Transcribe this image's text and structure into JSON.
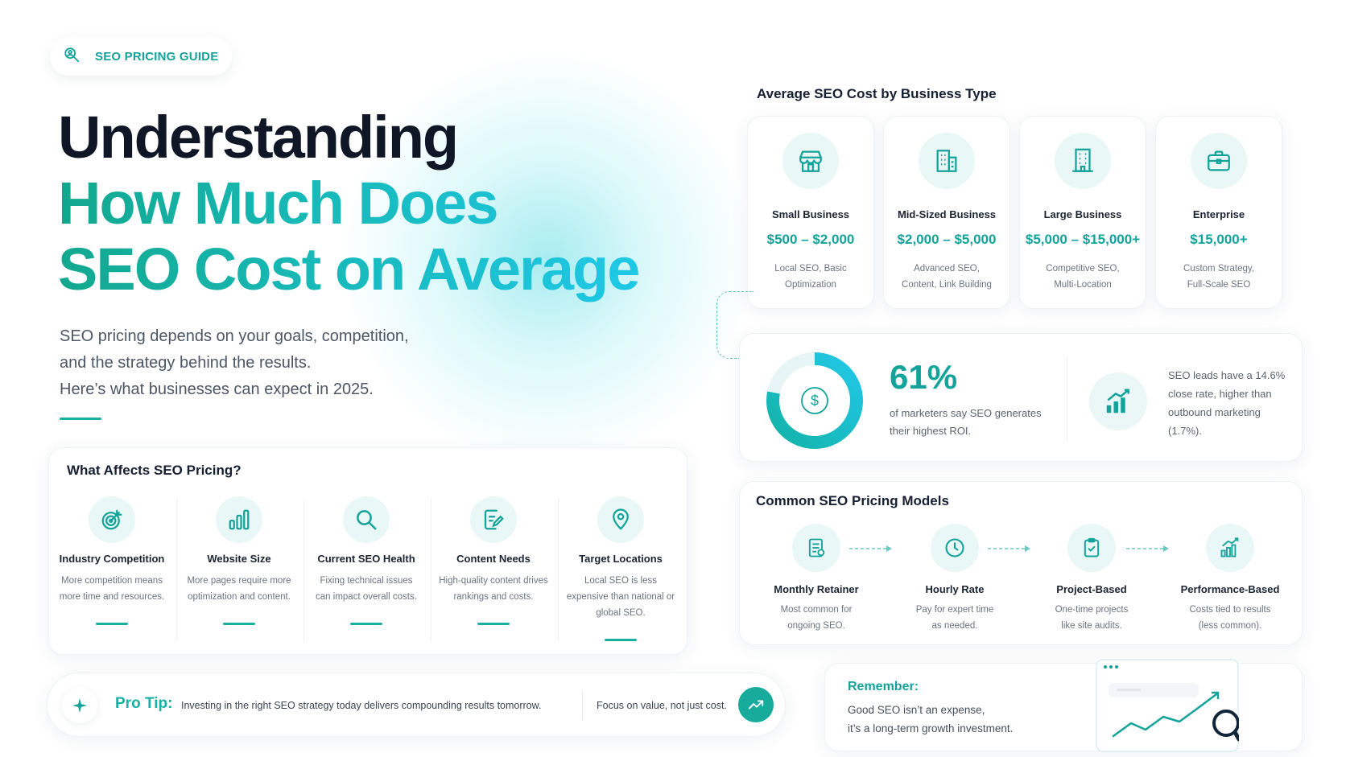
{
  "badge": {
    "label": "SEO PRICING GUIDE",
    "icon": "search-person-icon"
  },
  "hero": {
    "line1": "Understanding",
    "line2": "How Much Does",
    "line3": "SEO Cost on Average",
    "subtitle": [
      "SEO pricing depends on your goals, competition,",
      "and the strategy behind the results.",
      "Here’s what businesses can expect in 2025."
    ]
  },
  "factors": {
    "title": "What Affects SEO Pricing?",
    "items": [
      {
        "name": "Industry Competition",
        "desc": "More competition means more time and resources.",
        "icon": "target-icon"
      },
      {
        "name": "Website Size",
        "desc": "More pages require more optimization and content.",
        "icon": "bar-chart-icon"
      },
      {
        "name": "Current SEO Health",
        "desc": "Fixing technical issues can impact overall costs.",
        "icon": "search-icon"
      },
      {
        "name": "Content Needs",
        "desc": "High-quality content drives rankings and costs.",
        "icon": "document-edit-icon"
      },
      {
        "name": "Target Locations",
        "desc": "Local SEO is less expensive than national or global SEO.",
        "icon": "location-pin-icon"
      }
    ]
  },
  "protip": {
    "label": "Pro Tip:",
    "text": "Investing in the right SEO strategy today delivers compounding results tomorrow.",
    "focus": "Focus on value, not just cost."
  },
  "costs": {
    "title": "Average SEO Cost by Business Type",
    "items": [
      {
        "name": "Small Business",
        "price": "$500 – $2,000",
        "desc": [
          "Local SEO, Basic",
          "Optimization"
        ],
        "icon": "storefront-icon"
      },
      {
        "name": "Mid-Sized Business",
        "price": "$2,000 – $5,000",
        "desc": [
          "Advanced SEO,",
          "Content, Link Building"
        ],
        "icon": "building-icon"
      },
      {
        "name": "Large Business",
        "price": "$5,000 – $15,000+",
        "desc": [
          "Competitive SEO,",
          "Multi-Location"
        ],
        "icon": "office-tower-icon"
      },
      {
        "name": "Enterprise",
        "price": "$15,000+",
        "desc": [
          "Custom Strategy,",
          "Full-Scale SEO"
        ],
        "icon": "briefcase-icon"
      }
    ]
  },
  "stats": {
    "percent": "61%",
    "percent_value": 61,
    "desc": "of marketers say SEO generates their highest ROI.",
    "leads": "SEO leads have a 14.6% close rate, higher than outbound marketing (1.7%).",
    "colors": {
      "primary": "#14a39b",
      "accent": "#1fc8e6"
    }
  },
  "models": {
    "title": "Common SEO Pricing Models",
    "items": [
      {
        "name": "Monthly Retainer",
        "desc": [
          "Most common for",
          "ongoing SEO."
        ],
        "icon": "invoice-icon"
      },
      {
        "name": "Hourly Rate",
        "desc": [
          "Pay for expert time",
          "as needed."
        ],
        "icon": "clock-icon"
      },
      {
        "name": "Project-Based",
        "desc": [
          "One-time projects",
          "like site audits."
        ],
        "icon": "clipboard-check-icon"
      },
      {
        "name": "Performance-Based",
        "desc": [
          "Costs tied to results",
          "(less common)."
        ],
        "icon": "growth-chart-icon"
      }
    ]
  },
  "remember": {
    "title": "Remember:",
    "lines": [
      "Good SEO isn’t an expense,",
      "it’s a long-term growth investment."
    ]
  }
}
